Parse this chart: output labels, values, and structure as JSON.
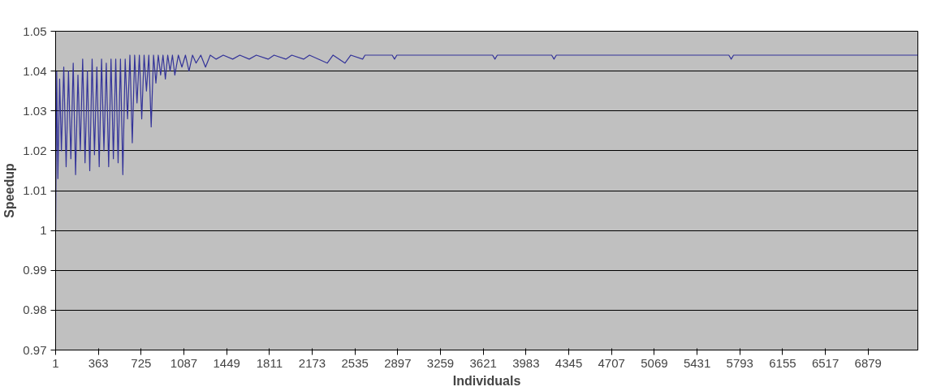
{
  "chart_data": {
    "type": "line",
    "xlabel": "Individuals",
    "ylabel": "Speedup",
    "xlim": [
      1,
      7300
    ],
    "xticks": [
      1,
      363,
      725,
      1087,
      1449,
      1811,
      2173,
      2535,
      2897,
      3259,
      3621,
      3983,
      4345,
      4707,
      5069,
      5431,
      5793,
      6155,
      6517,
      6879
    ],
    "ylim": [
      0.97,
      1.05
    ],
    "yticks": [
      0.97,
      0.98,
      0.99,
      1,
      1.01,
      1.02,
      1.03,
      1.04,
      1.05
    ],
    "grid": "y",
    "marker": "none",
    "line_style": "solid",
    "series": [
      {
        "color": "#333399",
        "x": [
          1,
          10,
          20,
          35,
          50,
          70,
          90,
          110,
          130,
          150,
          170,
          190,
          210,
          230,
          250,
          270,
          290,
          310,
          330,
          350,
          370,
          390,
          410,
          430,
          450,
          470,
          490,
          510,
          530,
          550,
          570,
          590,
          610,
          630,
          650,
          670,
          690,
          710,
          730,
          750,
          770,
          790,
          810,
          830,
          850,
          870,
          890,
          910,
          930,
          950,
          970,
          990,
          1010,
          1040,
          1070,
          1100,
          1130,
          1160,
          1190,
          1230,
          1270,
          1310,
          1360,
          1420,
          1500,
          1560,
          1640,
          1700,
          1800,
          1850,
          1950,
          2000,
          2100,
          2150,
          2300,
          2350,
          2450,
          2500,
          2600,
          2620,
          2850,
          2870,
          2890,
          3700,
          3720,
          3740,
          4200,
          4220,
          4240,
          5700,
          5720,
          5740,
          7300
        ],
        "values": [
          1.0,
          1.04,
          1.013,
          1.038,
          1.02,
          1.041,
          1.016,
          1.04,
          1.018,
          1.042,
          1.014,
          1.039,
          1.02,
          1.043,
          1.017,
          1.04,
          1.015,
          1.043,
          1.019,
          1.041,
          1.016,
          1.043,
          1.02,
          1.042,
          1.016,
          1.043,
          1.018,
          1.043,
          1.017,
          1.043,
          1.014,
          1.043,
          1.028,
          1.044,
          1.022,
          1.044,
          1.032,
          1.044,
          1.028,
          1.044,
          1.035,
          1.044,
          1.026,
          1.044,
          1.037,
          1.044,
          1.039,
          1.044,
          1.038,
          1.044,
          1.04,
          1.044,
          1.039,
          1.044,
          1.041,
          1.044,
          1.04,
          1.044,
          1.042,
          1.044,
          1.041,
          1.044,
          1.043,
          1.044,
          1.043,
          1.044,
          1.043,
          1.044,
          1.043,
          1.044,
          1.043,
          1.044,
          1.043,
          1.044,
          1.042,
          1.044,
          1.042,
          1.044,
          1.043,
          1.044,
          1.044,
          1.043,
          1.044,
          1.044,
          1.043,
          1.044,
          1.044,
          1.043,
          1.044,
          1.044,
          1.043,
          1.044,
          1.044
        ]
      }
    ]
  }
}
